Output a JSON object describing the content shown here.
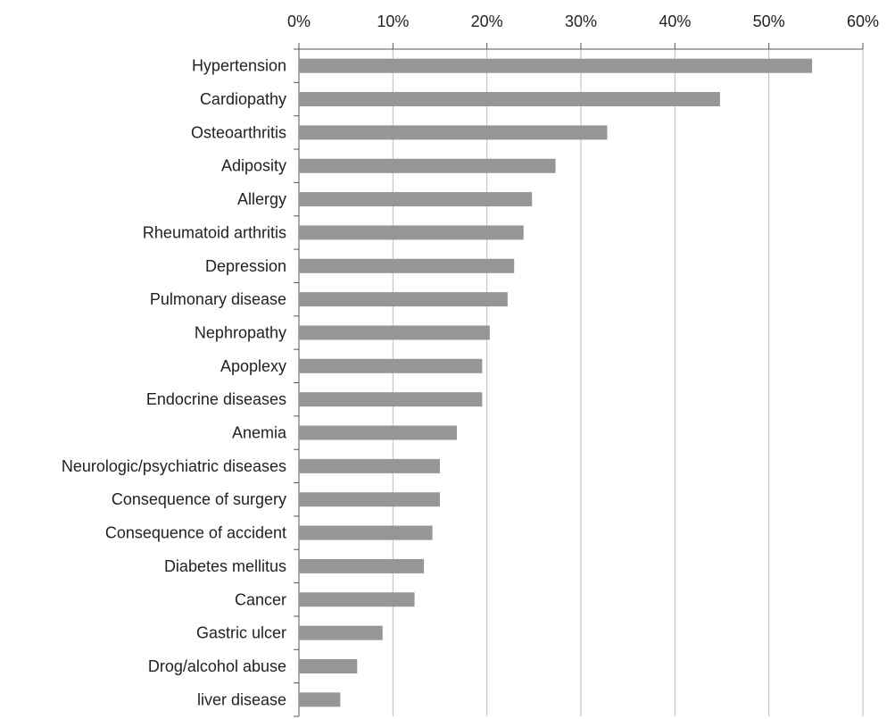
{
  "chart_data": {
    "type": "bar",
    "orientation": "horizontal",
    "categories": [
      "Hypertension",
      "Cardiopathy",
      "Osteoarthritis",
      "Adiposity",
      "Allergy",
      "Rheumatoid arthritis",
      "Depression",
      "Pulmonary disease",
      "Nephropathy",
      "Apoplexy",
      "Endocrine diseases",
      "Anemia",
      "Neurologic/psychiatric diseases",
      "Consequence of surgery",
      "Consequence of accident",
      "Diabetes mellitus",
      "Cancer",
      "Gastric ulcer",
      "Drog/alcohol abuse",
      "liver disease"
    ],
    "values": [
      54.6,
      44.8,
      32.8,
      27.3,
      24.8,
      23.9,
      22.9,
      22.2,
      20.3,
      19.5,
      19.5,
      16.8,
      15.0,
      15.0,
      14.2,
      13.3,
      12.3,
      8.9,
      6.2,
      4.4
    ],
    "xlim": [
      0,
      60
    ],
    "ticks": [
      "0%",
      "10%",
      "20%",
      "30%",
      "40%",
      "50%",
      "60%"
    ],
    "tick_values": [
      0,
      10,
      20,
      30,
      40,
      50,
      60
    ],
    "axis_position": "top",
    "grid": true,
    "bar_color": "#969696",
    "grid_color": "#bbbbbb",
    "axis_color": "#555555",
    "title": "",
    "xlabel": "",
    "ylabel": ""
  }
}
